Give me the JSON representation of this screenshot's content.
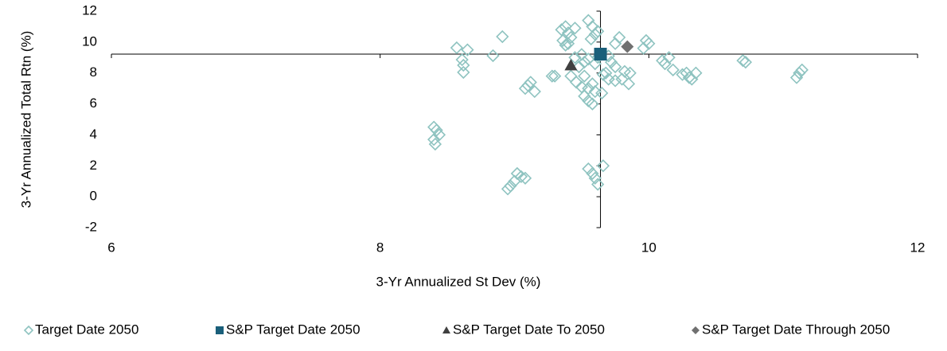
{
  "chart_data": {
    "type": "scatter",
    "xlabel": "3-Yr Annualized St Dev (%)",
    "ylabel": "3-Yr Annualized Total Rtn (%)",
    "xlim": [
      6,
      12
    ],
    "xticks": [
      6,
      8,
      10,
      12
    ],
    "ylim": [
      -2,
      12
    ],
    "yticks": [
      -2,
      0,
      2,
      4,
      6,
      8,
      10,
      12
    ],
    "axis_cross": {
      "x": 9.64,
      "y": 9.22
    },
    "legend": "bottom",
    "series": [
      {
        "name": "Target Date 2050",
        "color": "#8ec3c0",
        "marker": "diamond-open",
        "x": [
          8.4,
          8.42,
          8.44,
          8.4,
          8.41,
          8.95,
          8.97,
          9.0,
          9.02,
          9.05,
          9.08,
          9.55,
          9.58,
          9.6,
          9.62,
          9.66,
          8.57,
          8.91,
          8.61,
          8.62,
          8.62,
          8.65,
          8.84,
          9.1,
          9.12,
          9.15,
          9.08,
          9.28,
          9.3,
          9.35,
          9.38,
          9.4,
          9.42,
          9.45,
          9.36,
          9.38,
          9.4,
          9.55,
          9.58,
          9.6,
          9.57,
          9.62,
          9.78,
          9.75,
          9.45,
          9.5,
          9.52,
          9.48,
          9.55,
          9.6,
          9.62,
          9.7,
          9.72,
          9.75,
          9.68,
          9.52,
          9.46,
          9.5,
          9.55,
          9.58,
          9.6,
          9.52,
          9.55,
          9.58,
          9.65,
          9.7,
          9.66,
          9.42,
          9.85,
          9.8,
          9.82,
          9.86,
          9.75,
          9.98,
          10.0,
          9.96,
          10.1,
          10.12,
          10.15,
          10.18,
          10.25,
          10.3,
          10.28,
          10.32,
          10.35,
          10.7,
          10.72,
          11.1,
          11.12,
          11.14
        ],
        "y": [
          4.5,
          4.3,
          4.0,
          3.7,
          3.4,
          0.5,
          0.7,
          1.0,
          1.5,
          1.3,
          1.2,
          1.8,
          1.5,
          1.2,
          0.8,
          2.0,
          9.63,
          10.35,
          8.86,
          8.5,
          8.04,
          9.5,
          9.12,
          7.2,
          7.4,
          6.8,
          7.0,
          7.8,
          7.8,
          10.8,
          11.0,
          10.6,
          10.3,
          10.9,
          10.1,
          9.8,
          9.9,
          11.4,
          11.0,
          10.5,
          10.2,
          10.7,
          10.3,
          9.9,
          9.0,
          9.2,
          8.7,
          8.4,
          8.9,
          8.6,
          9.0,
          9.1,
          8.7,
          8.4,
          8.0,
          7.8,
          7.4,
          7.1,
          7.0,
          7.3,
          6.8,
          6.5,
          6.2,
          6.0,
          6.7,
          7.6,
          7.9,
          7.8,
          7.3,
          7.6,
          8.1,
          8.0,
          7.5,
          10.1,
          9.9,
          9.6,
          8.8,
          8.6,
          9.0,
          8.2,
          7.9,
          7.7,
          8.0,
          7.6,
          8.0,
          8.8,
          8.7,
          7.7,
          8.0,
          8.2
        ]
      },
      {
        "name": "S&P Target Date 2050",
        "color": "#1a5f7a",
        "marker": "square",
        "x": [
          9.64
        ],
        "y": [
          9.22
        ]
      },
      {
        "name": "S&P Target Date To 2050",
        "color": "#404040",
        "marker": "triangle",
        "x": [
          9.42
        ],
        "y": [
          8.5
        ]
      },
      {
        "name": "S&P Target Date Through 2050",
        "color": "#707070",
        "marker": "diamond",
        "x": [
          9.84
        ],
        "y": [
          9.7
        ]
      }
    ]
  }
}
